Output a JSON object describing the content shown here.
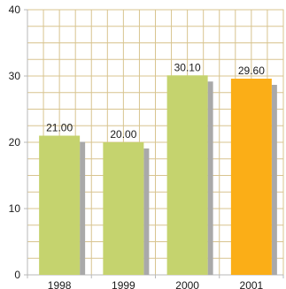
{
  "chart_data": {
    "type": "bar",
    "categories": [
      "1998",
      "1999",
      "2000",
      "2001"
    ],
    "values": [
      21.0,
      20.0,
      30.1,
      29.6
    ],
    "data_labels": [
      "21.00",
      "20.00",
      "30.10",
      "29.60"
    ],
    "y_ticks": [
      "0",
      "10",
      "20",
      "30",
      "40"
    ],
    "ylim": [
      0,
      40
    ],
    "grid": true,
    "colors": {
      "bar": "#c5d36e",
      "highlight": "#fbae17",
      "shadow": "#a9a9a9",
      "grid": "#d8c48f",
      "axis": "#b9b9b9"
    },
    "highlight_index": 3
  }
}
